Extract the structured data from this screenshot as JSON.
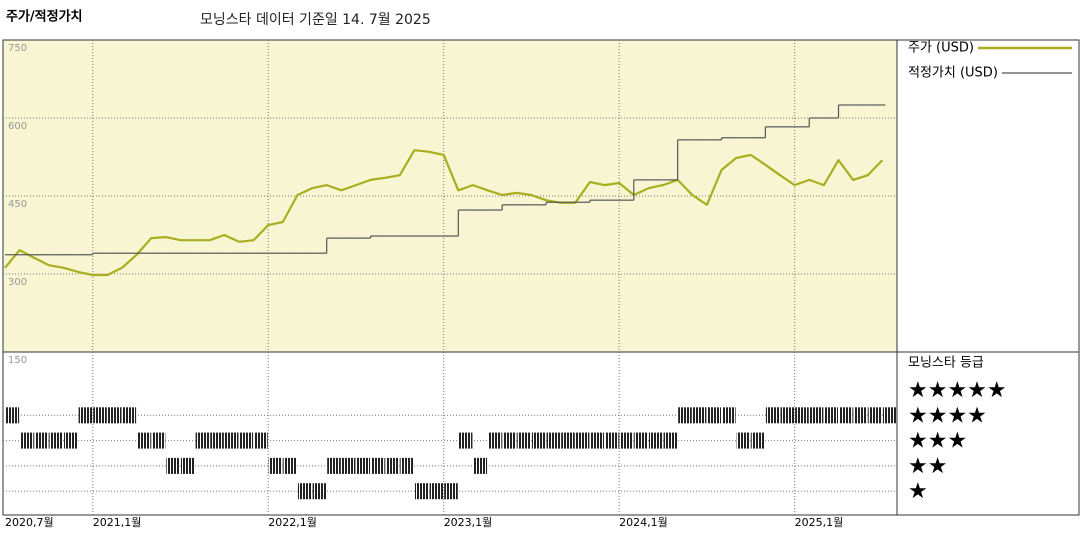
{
  "chart_data": {
    "type": "line",
    "title": "주가/적정가치",
    "subtitle": "모닝스타 데이터 기준일 14. 7월 2025",
    "x": [
      "2020-07",
      "2020-08",
      "2020-09",
      "2020-10",
      "2020-11",
      "2020-12",
      "2021-01",
      "2021-02",
      "2021-03",
      "2021-04",
      "2021-05",
      "2021-06",
      "2021-07",
      "2021-08",
      "2021-09",
      "2021-10",
      "2021-11",
      "2021-12",
      "2022-01",
      "2022-02",
      "2022-03",
      "2022-04",
      "2022-05",
      "2022-06",
      "2022-07",
      "2022-08",
      "2022-09",
      "2022-10",
      "2022-11",
      "2022-12",
      "2023-01",
      "2023-02",
      "2023-03",
      "2023-04",
      "2023-05",
      "2023-06",
      "2023-07",
      "2023-08",
      "2023-09",
      "2023-10",
      "2023-11",
      "2023-12",
      "2024-01",
      "2024-02",
      "2024-03",
      "2024-04",
      "2024-05",
      "2024-06",
      "2024-07",
      "2024-08",
      "2024-09",
      "2024-10",
      "2024-11",
      "2024-12",
      "2025-01",
      "2025-02",
      "2025-03",
      "2025-04",
      "2025-05",
      "2025-06",
      "2025-07"
    ],
    "xlim": [
      "2020-07",
      "2025-08"
    ],
    "xticks": [
      {
        "value": "2020-07",
        "label": "2020,7월"
      },
      {
        "value": "2021-01",
        "label": "2021,1월"
      },
      {
        "value": "2022-01",
        "label": "2022,1월"
      },
      {
        "value": "2023-01",
        "label": "2023,1월"
      },
      {
        "value": "2024-01",
        "label": "2024,1월"
      },
      {
        "value": "2025-01",
        "label": "2025,1월"
      }
    ],
    "ylim": [
      150,
      750
    ],
    "yticks": [
      150,
      300,
      450,
      600,
      750
    ],
    "grid": true,
    "background": "#f8f5d3",
    "series": [
      {
        "name": "주가 (USD)",
        "color": "#a9ae1f",
        "values": [
          312,
          346,
          331,
          317,
          312,
          304,
          298,
          298,
          312,
          337,
          369,
          371,
          365,
          365,
          365,
          375,
          362,
          365,
          394,
          400,
          452,
          465,
          471,
          461,
          471,
          481,
          485,
          490,
          538,
          535,
          529,
          461,
          471,
          461,
          452,
          456,
          452,
          442,
          437,
          437,
          477,
          471,
          475,
          452,
          465,
          471,
          481,
          452,
          433,
          500,
          523,
          529,
          510,
          490,
          471,
          481,
          471,
          519,
          481,
          490,
          519
        ]
      },
      {
        "name": "적정가치 (USD)",
        "color": "#555555",
        "step": true,
        "values": [
          337,
          337,
          337,
          337,
          337,
          337,
          340,
          340,
          340,
          340,
          340,
          340,
          340,
          340,
          340,
          340,
          340,
          340,
          340,
          340,
          340,
          340,
          369,
          369,
          369,
          373,
          373,
          373,
          373,
          373,
          373,
          423,
          423,
          423,
          433,
          433,
          433,
          438,
          438,
          438,
          442,
          442,
          442,
          481,
          481,
          481,
          558,
          558,
          558,
          562,
          562,
          562,
          583,
          583,
          583,
          600,
          600,
          625,
          625,
          625,
          625
        ]
      }
    ],
    "ratings": {
      "title": "모닝스타 등급",
      "levels": [
        {
          "value": 5,
          "label": "★★★★★"
        },
        {
          "value": 4,
          "label": "★★★★"
        },
        {
          "value": 3,
          "label": "★★★"
        },
        {
          "value": 2,
          "label": "★★"
        },
        {
          "value": 1,
          "label": "★"
        }
      ],
      "values": [
        4,
        3,
        3,
        3,
        3,
        4,
        4,
        4,
        4,
        3,
        3,
        2,
        2,
        3,
        3,
        3,
        3,
        3,
        2,
        2,
        1,
        1,
        2,
        2,
        2,
        2,
        2,
        2,
        1,
        1,
        1,
        3,
        2,
        3,
        3,
        3,
        3,
        3,
        3,
        3,
        3,
        3,
        3,
        3,
        3,
        3,
        4,
        4,
        4,
        4,
        3,
        3,
        4,
        4,
        4,
        4,
        4,
        4,
        4,
        4,
        4
      ]
    }
  }
}
